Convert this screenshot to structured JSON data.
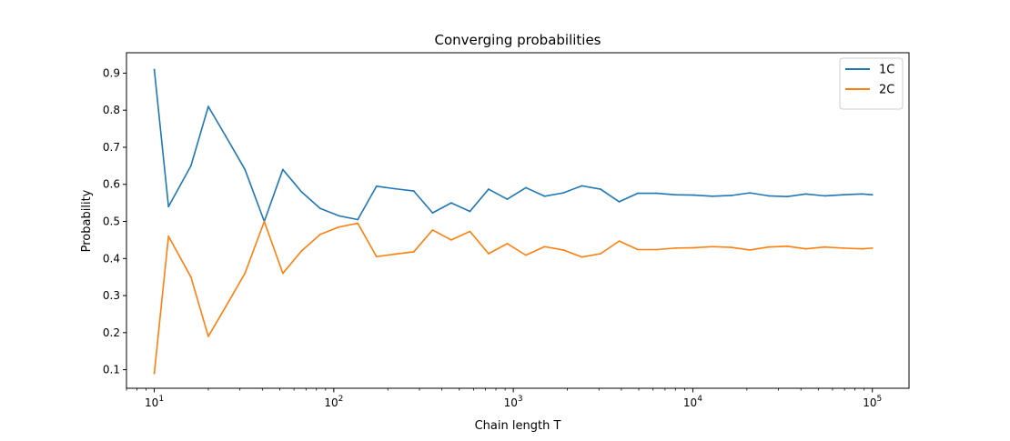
{
  "chart_data": {
    "type": "line",
    "title": "Converging probabilities",
    "xlabel": "Chain length T",
    "ylabel": "Probability",
    "xscale": "log",
    "xlim": [
      7,
      160000
    ],
    "ylim": [
      0.05,
      0.955
    ],
    "grid": false,
    "legend_position": "top-right",
    "xticks": [
      {
        "value": 10,
        "base": "10",
        "exp": "1"
      },
      {
        "value": 100,
        "base": "10",
        "exp": "2"
      },
      {
        "value": 1000,
        "base": "10",
        "exp": "3"
      },
      {
        "value": 10000,
        "base": "10",
        "exp": "4"
      },
      {
        "value": 100000,
        "base": "10",
        "exp": "5"
      }
    ],
    "yticks": [
      0.1,
      0.2,
      0.3,
      0.4,
      0.5,
      0.6,
      0.7,
      0.8,
      0.9
    ],
    "x": [
      10,
      12,
      16,
      20,
      25,
      32,
      41,
      52,
      66,
      84,
      107,
      136,
      173,
      220,
      279,
      355,
      451,
      573,
      728,
      925,
      1175,
      1493,
      1897,
      2410,
      3062,
      3890,
      4942,
      6279,
      7978,
      10136,
      12878,
      16362,
      20789,
      26413,
      33559,
      42638,
      54173,
      68828,
      87449,
      100000
    ],
    "series": [
      {
        "name": "1C",
        "color": "#1f77b4",
        "values": [
          0.91,
          0.54,
          0.65,
          0.81,
          0.73,
          0.64,
          0.5,
          0.64,
          0.58,
          0.535,
          0.515,
          0.505,
          0.595,
          0.588,
          0.582,
          0.523,
          0.55,
          0.527,
          0.587,
          0.56,
          0.591,
          0.568,
          0.577,
          0.596,
          0.587,
          0.553,
          0.576,
          0.576,
          0.572,
          0.571,
          0.568,
          0.57,
          0.577,
          0.569,
          0.567,
          0.574,
          0.569,
          0.572,
          0.574,
          0.572
        ]
      },
      {
        "name": "2C",
        "color": "#ff7f0e",
        "values": [
          0.09,
          0.46,
          0.35,
          0.19,
          0.27,
          0.36,
          0.5,
          0.36,
          0.42,
          0.465,
          0.485,
          0.495,
          0.405,
          0.412,
          0.418,
          0.477,
          0.45,
          0.473,
          0.413,
          0.44,
          0.409,
          0.432,
          0.423,
          0.404,
          0.413,
          0.447,
          0.424,
          0.424,
          0.428,
          0.429,
          0.432,
          0.43,
          0.423,
          0.431,
          0.433,
          0.426,
          0.431,
          0.428,
          0.426,
          0.428
        ]
      }
    ]
  }
}
